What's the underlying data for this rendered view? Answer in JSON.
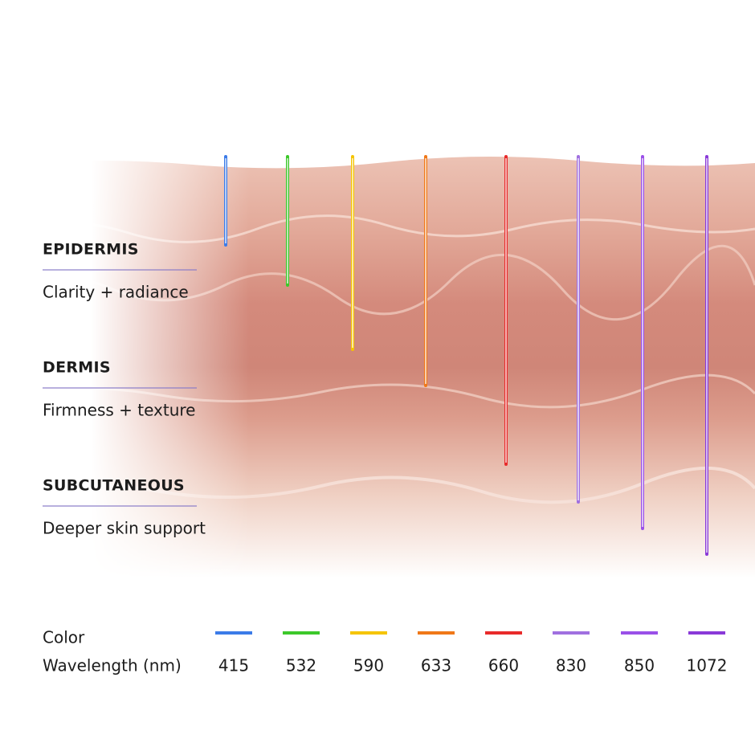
{
  "layers": [
    {
      "title": "EPIDERMIS",
      "description": "Clarity + radiance"
    },
    {
      "title": "DERMIS",
      "description": "Firmness + texture"
    },
    {
      "title": "SUBCUTANEOUS",
      "description": "Deeper skin support"
    }
  ],
  "legend": {
    "color_label": "Color",
    "wavelength_label": "Wavelength (nm)",
    "items": [
      {
        "wavelength": 415,
        "color": "#3b7be8"
      },
      {
        "wavelength": 532,
        "color": "#3cc82a"
      },
      {
        "wavelength": 590,
        "color": "#f5c400"
      },
      {
        "wavelength": 633,
        "color": "#f07818"
      },
      {
        "wavelength": 660,
        "color": "#e82a2a"
      },
      {
        "wavelength": 830,
        "color": "#a070e0"
      },
      {
        "wavelength": 850,
        "color": "#9a50e8"
      },
      {
        "wavelength": 1072,
        "color": "#8a3ad8"
      }
    ]
  }
}
